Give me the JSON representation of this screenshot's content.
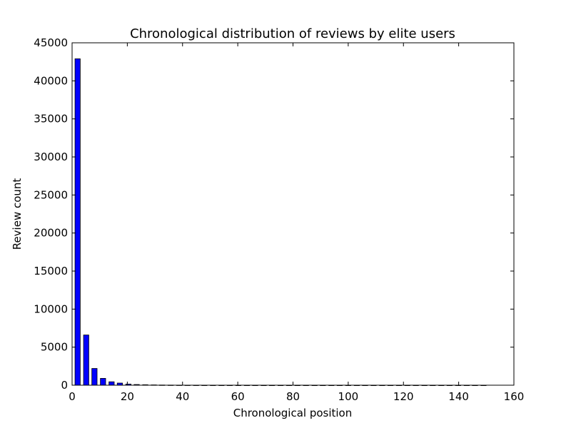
{
  "chart_data": {
    "type": "bar",
    "title": "Chronological distribution of reviews by elite users",
    "xlabel": "Chronological position",
    "ylabel": "Review count",
    "xlim": [
      0,
      160
    ],
    "ylim": [
      0,
      45000
    ],
    "xticks": [
      "0",
      "20",
      "40",
      "60",
      "80",
      "100",
      "120",
      "140",
      "160"
    ],
    "yticks": [
      "0",
      "5000",
      "10000",
      "15000",
      "20000",
      "25000",
      "30000",
      "35000",
      "40000",
      "45000"
    ],
    "x": [
      2.0,
      5.1,
      8.1,
      11.2,
      14.3,
      17.3,
      20.4,
      23.4,
      26.5,
      29.6,
      32.6,
      35.7,
      38.8,
      41.8,
      44.9,
      47.9,
      51.0,
      54.1,
      57.1,
      60.2,
      63.3,
      66.3,
      69.4,
      72.4,
      75.5,
      78.6,
      81.6,
      84.7,
      87.8,
      90.8,
      93.9,
      96.9,
      100.0,
      103.1,
      106.1,
      109.2,
      112.3,
      115.3,
      118.4,
      121.4,
      124.5,
      127.6,
      130.6,
      133.7,
      136.7,
      139.8,
      142.9,
      145.9,
      149.0
    ],
    "values": [
      42900,
      6600,
      2200,
      900,
      450,
      280,
      150,
      90,
      60,
      40,
      25,
      18,
      12,
      9,
      7,
      5,
      4,
      3,
      3,
      2,
      2,
      2,
      1,
      1,
      1,
      1,
      1,
      1,
      1,
      1,
      1,
      1,
      1,
      1,
      1,
      1,
      1,
      1,
      1,
      1,
      1,
      1,
      1,
      1,
      1,
      1,
      1,
      1,
      1
    ],
    "bar_color": "#0000ff",
    "edge_color": "#000000",
    "grid": false,
    "legend": "none"
  }
}
